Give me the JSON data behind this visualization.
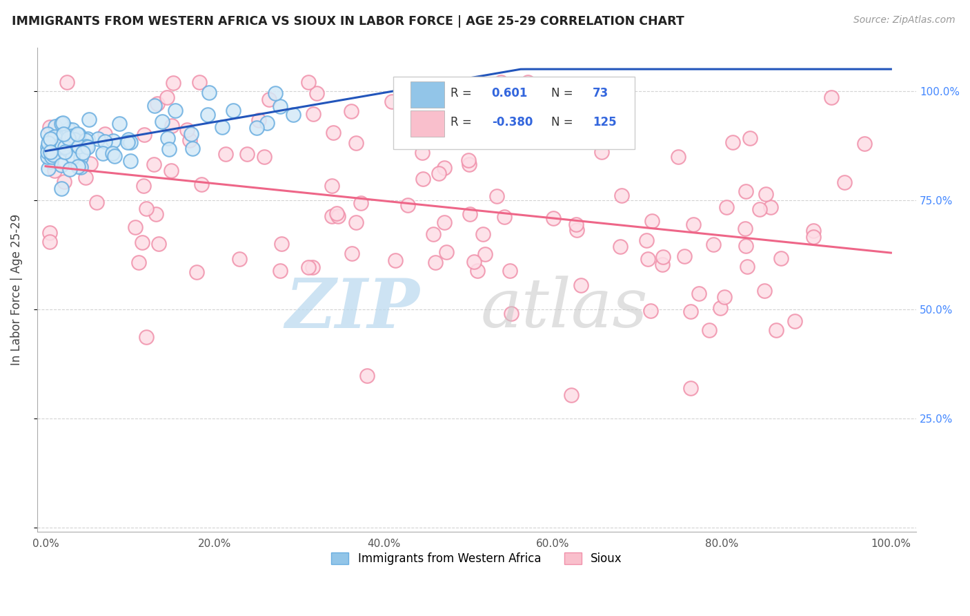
{
  "title": "IMMIGRANTS FROM WESTERN AFRICA VS SIOUX IN LABOR FORCE | AGE 25-29 CORRELATION CHART",
  "source": "Source: ZipAtlas.com",
  "ylabel": "In Labor Force | Age 25-29",
  "xlim": [
    0.0,
    100.0
  ],
  "ylim": [
    0.0,
    1.08
  ],
  "blue_color": "#92C5E8",
  "blue_edge": "#6aaee0",
  "pink_color": "#F9BFCC",
  "pink_edge": "#f090aa",
  "blue_line_color": "#2255BB",
  "pink_line_color": "#EE6688",
  "blue_r": 0.601,
  "blue_n": 73,
  "pink_r": -0.38,
  "pink_n": 125,
  "background_color": "#ffffff",
  "grid_color": "#c8c8c8",
  "legend_label_blue": "Immigrants from Western Africa",
  "legend_label_pink": "Sioux",
  "title_color": "#222222",
  "source_color": "#999999",
  "right_tick_color": "#4488FF",
  "ylabel_color": "#444444"
}
